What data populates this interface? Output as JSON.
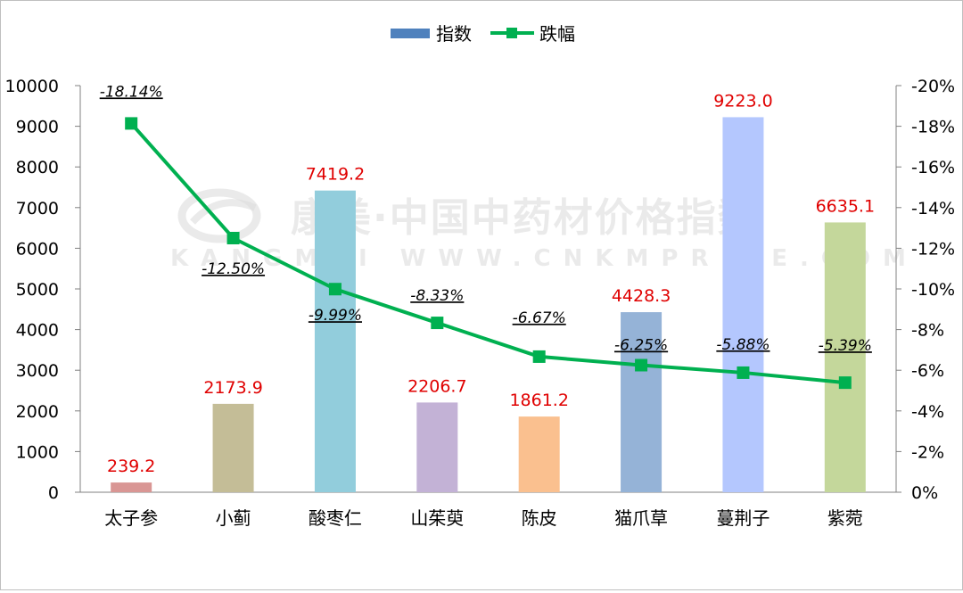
{
  "watermark": {
    "cn": "康美·中国中药材价格指数",
    "en": "KANGMEI  WWW.CNKMPRICE.COM"
  },
  "legend": {
    "bar": "指数",
    "line": "跌幅"
  },
  "colors": {
    "line": "#00b050",
    "bar_label": "#e00000",
    "legend_bar": "#4f81bd",
    "bars": [
      "#d99694",
      "#c4bd97",
      "#92cddc",
      "#c3b2d6",
      "#fac08f",
      "#95b3d7",
      "#b4c7fe",
      "#c4d79b"
    ]
  },
  "chart_data": {
    "type": "bar+line",
    "categories": [
      "太子参",
      "小蓟",
      "酸枣仁",
      "山茱萸",
      "陈皮",
      "猫爪草",
      "蔓荆子",
      "紫菀"
    ],
    "series": [
      {
        "name": "指数",
        "type": "bar",
        "axis": "left",
        "values": [
          239.2,
          2173.9,
          7419.2,
          2206.7,
          1861.2,
          4428.3,
          9223.0,
          6635.1
        ],
        "labels": [
          "239.2",
          "2173.9",
          "7419.2",
          "2206.7",
          "1861.2",
          "4428.3",
          "9223.0",
          "6635.1"
        ]
      },
      {
        "name": "跌幅",
        "type": "line",
        "axis": "right",
        "values": [
          -18.14,
          -12.5,
          -9.99,
          -8.33,
          -6.67,
          -6.25,
          -5.88,
          -5.39
        ],
        "labels": [
          "-18.14%",
          "-12.50%",
          "-9.99%",
          "-8.33%",
          "-6.67%",
          "-6.25%",
          "-5.88%",
          "-5.39%"
        ]
      }
    ],
    "y_left": {
      "range": [
        0,
        10000
      ],
      "ticks": [
        "0",
        "1000",
        "2000",
        "3000",
        "4000",
        "5000",
        "6000",
        "7000",
        "8000",
        "9000",
        "10000"
      ]
    },
    "y_right": {
      "range": [
        0,
        -20
      ],
      "ticks": [
        "0%",
        "-2%",
        "-4%",
        "-6%",
        "-8%",
        "-10%",
        "-12%",
        "-14%",
        "-16%",
        "-18%",
        "-20%"
      ],
      "reversed": true
    },
    "grid": false,
    "legend_position": "top"
  }
}
